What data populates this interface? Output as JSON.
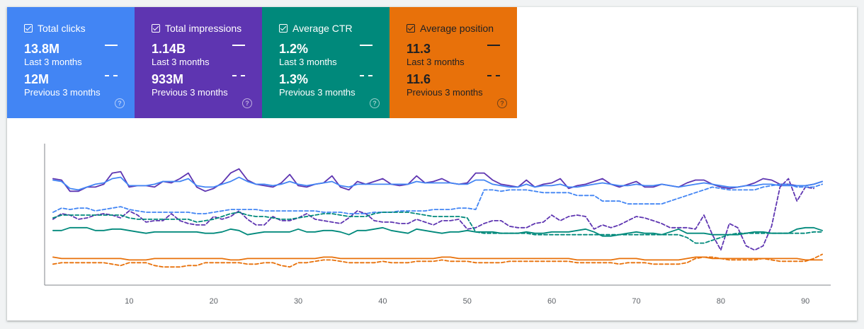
{
  "cards": [
    {
      "key": "clicks",
      "title": "Total clicks",
      "current_value": "13.8M",
      "current_period": "Last 3 months",
      "previous_value": "12M",
      "previous_period": "Previous 3 months",
      "color": "#4285f4",
      "text_color": "#ffffff",
      "help_icon": "question-circle-icon"
    },
    {
      "key": "impressions",
      "title": "Total impressions",
      "current_value": "1.14B",
      "current_period": "Last 3 months",
      "previous_value": "933M",
      "previous_period": "Previous 3 months",
      "color": "#5e35b1",
      "text_color": "#ffffff",
      "help_icon": "question-circle-icon"
    },
    {
      "key": "ctr",
      "title": "Average CTR",
      "current_value": "1.2%",
      "current_period": "Last 3 months",
      "previous_value": "1.3%",
      "previous_period": "Previous 3 months",
      "color": "#00897b",
      "text_color": "#ffffff",
      "help_icon": "question-circle-icon"
    },
    {
      "key": "position",
      "title": "Average position",
      "current_value": "11.3",
      "current_period": "Last 3 months",
      "previous_value": "11.6",
      "previous_period": "Previous 3 months",
      "color": "#e8710a",
      "text_color": "#202124",
      "help_icon": "question-circle-icon"
    }
  ],
  "chart_data": {
    "type": "line",
    "title": "",
    "xlabel": "",
    "ylabel": "",
    "x_ticks": [
      "10",
      "20",
      "30",
      "40",
      "50",
      "60",
      "70",
      "80",
      "90"
    ],
    "xlim": [
      0,
      93
    ],
    "ylim": [
      0,
      100
    ],
    "y_axis_labels_shown": false,
    "grid": false,
    "series": [
      {
        "metric": "impressions",
        "period": "current",
        "color": "#5e35b1",
        "dash": false,
        "x_start": 1,
        "values": [
          76,
          75,
          67,
          67,
          70,
          70,
          72,
          80,
          81,
          70,
          71,
          71,
          70,
          74,
          73,
          76,
          80,
          70,
          67,
          69,
          73,
          80,
          83,
          75,
          72,
          71,
          70,
          73,
          79,
          71,
          70,
          72,
          73,
          78,
          70,
          68,
          74,
          72,
          74,
          76,
          72,
          71,
          72,
          78,
          73,
          74,
          76,
          73,
          72,
          73,
          80,
          80,
          75,
          72,
          71,
          70,
          75,
          70,
          72,
          73,
          76,
          69,
          71,
          72,
          74,
          76,
          72,
          70,
          72,
          74,
          70,
          70,
          72,
          71,
          70,
          73,
          75,
          75,
          72,
          70,
          69,
          70,
          71,
          73,
          76,
          75,
          72,
          72,
          71,
          71,
          72,
          74
        ]
      },
      {
        "metric": "clicks",
        "period": "current",
        "color": "#4285f4",
        "dash": false,
        "x_start": 1,
        "values": [
          75,
          74,
          69,
          68,
          70,
          72,
          73,
          76,
          77,
          71,
          71,
          71,
          72,
          74,
          74,
          74,
          76,
          71,
          70,
          70,
          72,
          74,
          77,
          74,
          72,
          72,
          71,
          72,
          74,
          72,
          71,
          72,
          73,
          74,
          71,
          70,
          72,
          72,
          72,
          72,
          72,
          72,
          72,
          74,
          73,
          73,
          73,
          73,
          72,
          72,
          75,
          75,
          72,
          71,
          70,
          70,
          72,
          70,
          71,
          71,
          72,
          70,
          70,
          71,
          72,
          73,
          72,
          71,
          71,
          72,
          71,
          71,
          72,
          71,
          70,
          71,
          72,
          73,
          72,
          71,
          70,
          70,
          71,
          71,
          72,
          72,
          71,
          71,
          71,
          71,
          72,
          74
        ]
      },
      {
        "metric": "impressions",
        "period": "previous",
        "color": "#5e35b1",
        "dash": true,
        "x_start": 1,
        "values": [
          47,
          51,
          50,
          47,
          48,
          50,
          51,
          50,
          48,
          53,
          50,
          45,
          46,
          46,
          51,
          46,
          44,
          43,
          43,
          49,
          47,
          49,
          53,
          47,
          43,
          43,
          49,
          46,
          46,
          48,
          51,
          47,
          46,
          45,
          44,
          48,
          53,
          51,
          46,
          45,
          45,
          44,
          44,
          47,
          45,
          43,
          46,
          46,
          47,
          40,
          41,
          44,
          46,
          46,
          42,
          41,
          41,
          44,
          45,
          50,
          46,
          49,
          50,
          49,
          40,
          43,
          41,
          43,
          46,
          49,
          48,
          46,
          44,
          41,
          41,
          41,
          40,
          50,
          36,
          25,
          44,
          41,
          28,
          25,
          28,
          42,
          70,
          76,
          60,
          70,
          69
        ]
      },
      {
        "metric": "clicks",
        "period": "previous",
        "color": "#4285f4",
        "dash": true,
        "x_start": 1,
        "values": [
          52,
          55,
          54,
          55,
          55,
          53,
          54,
          55,
          56,
          54,
          53,
          52,
          52,
          52,
          52,
          52,
          52,
          51,
          51,
          52,
          53,
          54,
          54,
          54,
          54,
          53,
          53,
          53,
          53,
          53,
          53,
          53,
          52,
          52,
          52,
          51,
          51,
          51,
          52,
          52,
          52,
          53,
          53,
          53,
          53,
          54,
          54,
          54,
          55,
          55,
          54,
          68,
          68,
          67,
          68,
          68,
          68,
          67,
          66,
          66,
          66,
          66,
          64,
          64,
          64,
          60,
          60,
          60,
          58,
          58,
          58,
          58,
          58,
          60,
          62,
          64,
          66,
          68,
          70,
          69,
          68,
          68,
          68,
          68,
          70,
          71,
          72,
          72,
          70,
          70,
          70,
          72
        ]
      },
      {
        "metric": "ctr",
        "period": "previous",
        "color": "#00897b",
        "dash": true,
        "x_start": 1,
        "values": [
          48,
          50,
          50,
          50,
          50,
          50,
          50,
          50,
          50,
          48,
          47,
          47,
          47,
          47,
          47,
          47,
          47,
          45,
          46,
          47,
          49,
          51,
          52,
          50,
          49,
          49,
          48,
          47,
          47,
          48,
          49,
          50,
          51,
          51,
          50,
          49,
          49,
          49,
          51,
          52,
          52,
          52,
          52,
          51,
          50,
          49,
          49,
          49,
          49,
          48,
          38,
          37,
          37,
          37,
          37,
          37,
          37,
          36,
          36,
          36,
          36,
          36,
          36,
          36,
          36,
          36,
          36,
          36,
          36,
          36,
          36,
          36,
          36,
          36,
          36,
          34,
          30,
          30,
          32,
          34,
          36,
          37,
          37,
          37,
          37,
          37,
          37,
          37,
          37,
          37,
          38,
          38
        ]
      },
      {
        "metric": "ctr",
        "period": "current",
        "color": "#00897b",
        "dash": false,
        "x_start": 1,
        "values": [
          39,
          39,
          41,
          41,
          41,
          39,
          39,
          40,
          40,
          39,
          38,
          37,
          38,
          38,
          38,
          38,
          38,
          38,
          37,
          37,
          38,
          40,
          39,
          36,
          37,
          38,
          38,
          38,
          38,
          40,
          38,
          38,
          39,
          39,
          38,
          36,
          39,
          39,
          40,
          41,
          39,
          38,
          37,
          40,
          39,
          38,
          37,
          38,
          38,
          39,
          38,
          38,
          38,
          37,
          37,
          37,
          38,
          37,
          37,
          38,
          38,
          38,
          39,
          40,
          38,
          35,
          35,
          36,
          37,
          38,
          37,
          37,
          36,
          38,
          40,
          37,
          37,
          37,
          36,
          36,
          36,
          36,
          37,
          38,
          38,
          37,
          37,
          37,
          40,
          41,
          41,
          39
        ]
      },
      {
        "metric": "position",
        "period": "current",
        "color": "#e8710a",
        "dash": false,
        "x_start": 1,
        "values": [
          20,
          19,
          19,
          19,
          19,
          19,
          19,
          19,
          19,
          18,
          18,
          18,
          19,
          19,
          19,
          19,
          19,
          19,
          19,
          19,
          19,
          18,
          18,
          19,
          19,
          19,
          19,
          19,
          19,
          19,
          19,
          19,
          20,
          20,
          19,
          19,
          19,
          19,
          19,
          19,
          19,
          19,
          19,
          19,
          19,
          19,
          20,
          20,
          19,
          19,
          19,
          19,
          19,
          19,
          19,
          19,
          19,
          19,
          19,
          19,
          19,
          19,
          18,
          18,
          18,
          18,
          18,
          19,
          19,
          19,
          18,
          18,
          18,
          18,
          18,
          19,
          20,
          20,
          19,
          19,
          19,
          19,
          19,
          19,
          19,
          19,
          19,
          19,
          19,
          18,
          18,
          18
        ]
      },
      {
        "metric": "position",
        "period": "previous",
        "color": "#e8710a",
        "dash": true,
        "x_start": 1,
        "values": [
          15,
          16,
          16,
          16,
          16,
          16,
          16,
          15,
          14,
          16,
          16,
          16,
          14,
          13,
          13,
          13,
          14,
          14,
          16,
          16,
          16,
          16,
          16,
          15,
          15,
          16,
          16,
          14,
          13,
          16,
          16,
          17,
          18,
          18,
          17,
          16,
          16,
          16,
          16,
          17,
          16,
          16,
          16,
          17,
          17,
          17,
          18,
          17,
          17,
          17,
          16,
          16,
          16,
          16,
          17,
          17,
          17,
          17,
          17,
          17,
          17,
          17,
          16,
          16,
          16,
          16,
          16,
          15,
          16,
          16,
          16,
          15,
          15,
          15,
          15,
          16,
          19,
          20,
          20,
          19,
          18,
          18,
          18,
          18,
          19,
          18,
          17,
          17,
          17,
          17,
          19,
          22
        ]
      }
    ]
  }
}
